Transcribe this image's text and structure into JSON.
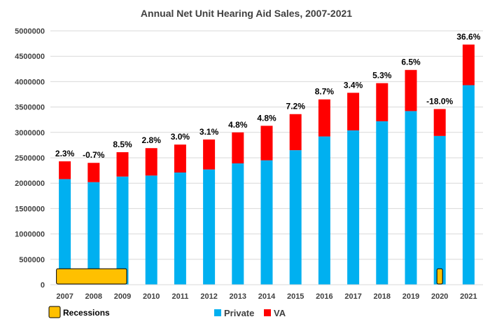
{
  "chart_data": {
    "type": "bar",
    "stacked": true,
    "title": "Annual Net Unit Hearing Aid Sales, 2007-2021",
    "categories": [
      "2007",
      "2008",
      "2009",
      "2010",
      "2011",
      "2012",
      "2013",
      "2014",
      "2015",
      "2016",
      "2017",
      "2018",
      "2019",
      "2020",
      "2021"
    ],
    "series": [
      {
        "name": "Private",
        "color": "#00b0f0",
        "values": [
          2080000,
          2020000,
          2130000,
          2150000,
          2210000,
          2270000,
          2390000,
          2450000,
          2650000,
          2920000,
          3040000,
          3220000,
          3420000,
          2930000,
          3930000
        ]
      },
      {
        "name": "VA",
        "color": "#ff0000",
        "values": [
          350000,
          380000,
          480000,
          540000,
          550000,
          590000,
          610000,
          680000,
          710000,
          730000,
          740000,
          750000,
          810000,
          530000,
          800000
        ]
      }
    ],
    "data_labels": [
      "2.3%",
      "-0.7%",
      "8.5%",
      "2.8%",
      "3.0%",
      "3.1%",
      "4.8%",
      "4.8%",
      "7.2%",
      "8.7%",
      "3.4%",
      "5.3%",
      "6.5%",
      "-18.0%",
      "36.6%"
    ],
    "y_ticks": [
      "0",
      "500000",
      "1000000",
      "1500000",
      "2000000",
      "2500000",
      "3000000",
      "3500000",
      "4000000",
      "4500000",
      "5000000"
    ],
    "ylim": [
      0,
      5000000
    ],
    "grid": true,
    "legend_position": "bottom",
    "recessions": {
      "label": "Recessions",
      "color": "#ffc000",
      "periods": [
        {
          "start": "2007",
          "end": "2009",
          "height": 300000
        },
        {
          "start": "2020",
          "end": "2020",
          "height": 300000
        }
      ]
    }
  }
}
